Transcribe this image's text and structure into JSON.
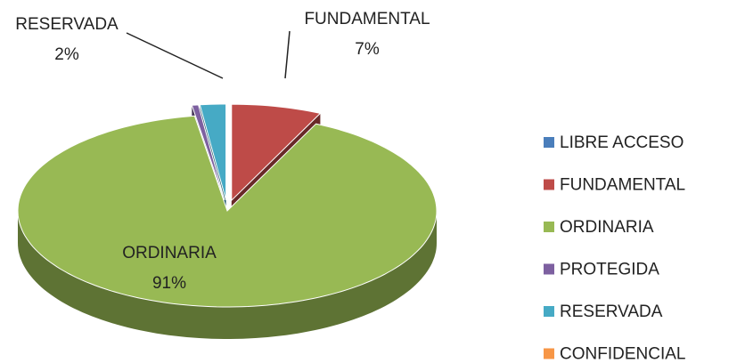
{
  "chart_data": {
    "type": "pie3d",
    "categories": [
      "LIBRE ACCESO",
      "FUNDAMENTAL",
      "ORDINARIA",
      "PROTEGIDA",
      "RESERVADA",
      "CONFIDENCIAL"
    ],
    "values": [
      0,
      7,
      91,
      0.5,
      2,
      0
    ],
    "value_labels": [
      null,
      "7%",
      "91%",
      null,
      "2%",
      null
    ],
    "colors": [
      "#4a7ebb",
      "#be4b48",
      "#98b954",
      "#7d60a0",
      "#46aac5",
      "#f79646"
    ],
    "legend": "right"
  }
}
